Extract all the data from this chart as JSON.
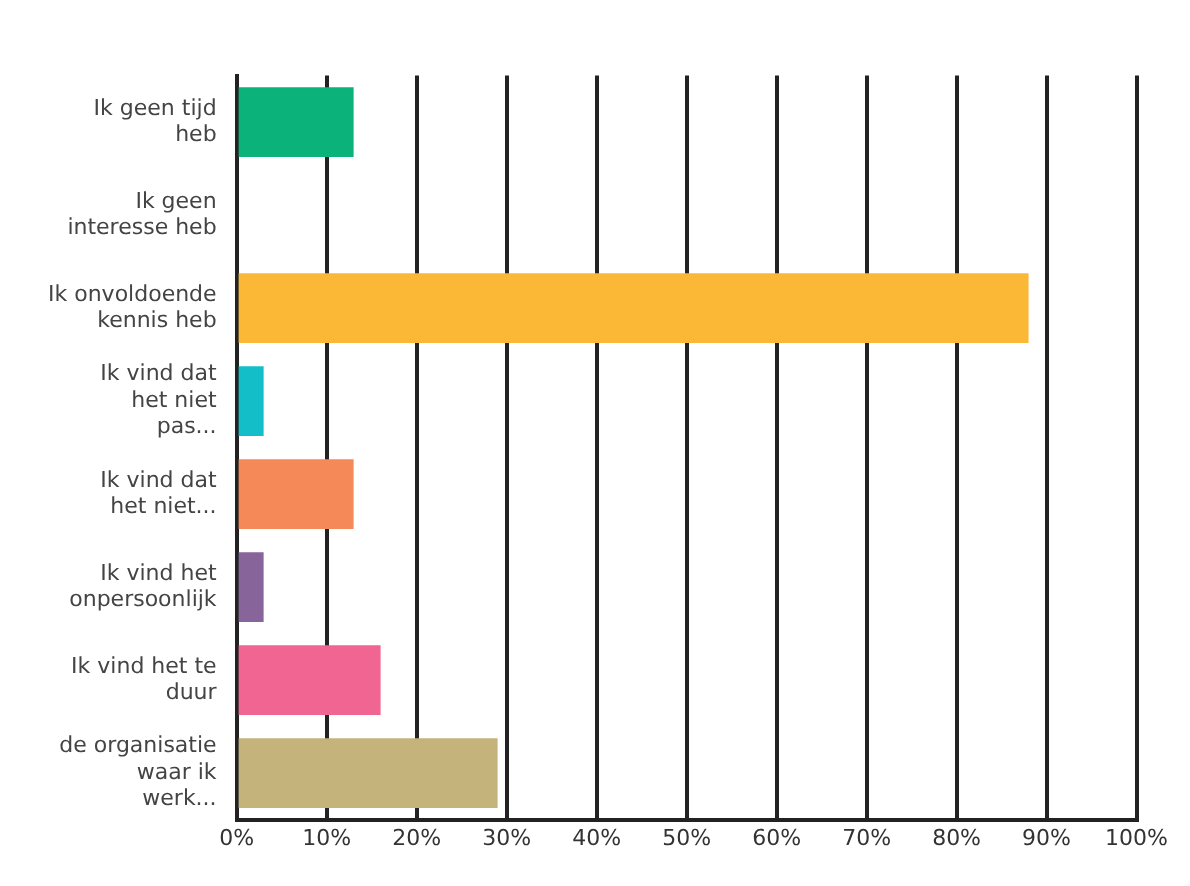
{
  "chart_data": {
    "type": "bar",
    "orientation": "horizontal",
    "categories": [
      "Ik geen tijd heb",
      "Ik geen interesse heb",
      "Ik onvoldoende kennis heb",
      "Ik vind dat het niet pas...",
      "Ik vind dat het niet...",
      "Ik vind het onpersoonlijk",
      "Ik vind het te duur",
      "de organisatie waar ik werk..."
    ],
    "values": [
      13,
      0,
      88,
      3,
      13,
      3,
      16,
      29
    ],
    "colors": [
      "#0bb27a",
      "#f9f9f9",
      "#fbb836",
      "#14bec8",
      "#f58958",
      "#87659a",
      "#f06592",
      "#c4b37a"
    ],
    "xlim": [
      0,
      100
    ],
    "xticks": [
      {
        "value": 0,
        "label": "0%"
      },
      {
        "value": 10,
        "label": "10%"
      },
      {
        "value": 20,
        "label": "20%"
      },
      {
        "value": 30,
        "label": "30%"
      },
      {
        "value": 40,
        "label": "40%"
      },
      {
        "value": 50,
        "label": "50%"
      },
      {
        "value": 60,
        "label": "60%"
      },
      {
        "value": 70,
        "label": "70%"
      },
      {
        "value": 80,
        "label": "80%"
      },
      {
        "value": 90,
        "label": "90%"
      },
      {
        "value": 100,
        "label": "100%"
      }
    ],
    "grid": "x",
    "legend": false
  }
}
